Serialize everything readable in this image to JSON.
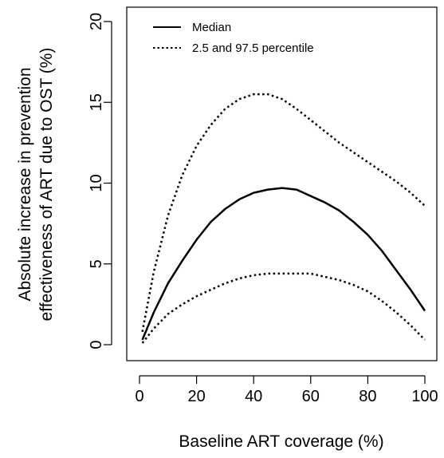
{
  "chart_data": {
    "type": "line",
    "title": "",
    "xlabel": "Baseline ART coverage (%)",
    "ylabel_lines": [
      "Absolute increase in prevention",
      "effectiveness of ART due to OST (%)"
    ],
    "xlim": [
      0,
      100
    ],
    "ylim": [
      0,
      20
    ],
    "xticks": [
      0,
      20,
      40,
      60,
      80,
      100
    ],
    "yticks": [
      0,
      5,
      10,
      15,
      20
    ],
    "grid": false,
    "legend_position": "top-left",
    "series": [
      {
        "name": "Median",
        "style": "solid",
        "color": "#000000",
        "x": [
          1,
          5,
          10,
          15,
          20,
          25,
          30,
          35,
          40,
          45,
          50,
          55,
          60,
          65,
          70,
          75,
          80,
          85,
          90,
          95,
          100
        ],
        "y": [
          0.3,
          2.0,
          3.8,
          5.2,
          6.5,
          7.6,
          8.4,
          9.0,
          9.4,
          9.6,
          9.7,
          9.6,
          9.2,
          8.8,
          8.3,
          7.6,
          6.8,
          5.8,
          4.6,
          3.4,
          2.1
        ]
      },
      {
        "name": "2.5 and 97.5 percentile",
        "style": "dotted",
        "color": "#000000",
        "x": [
          1,
          5,
          10,
          15,
          20,
          25,
          30,
          35,
          40,
          45,
          50,
          55,
          60,
          65,
          70,
          75,
          80,
          85,
          90,
          95,
          100
        ],
        "y": [
          0.8,
          4.5,
          8.0,
          10.5,
          12.3,
          13.6,
          14.6,
          15.2,
          15.5,
          15.5,
          15.2,
          14.6,
          13.9,
          13.2,
          12.5,
          11.9,
          11.3,
          10.7,
          10.1,
          9.4,
          8.6
        ]
      },
      {
        "name": "",
        "style": "dotted",
        "color": "#000000",
        "x": [
          1,
          5,
          10,
          15,
          20,
          25,
          30,
          35,
          40,
          45,
          50,
          55,
          60,
          65,
          70,
          75,
          80,
          85,
          90,
          95,
          100
        ],
        "y": [
          0.1,
          1.0,
          1.9,
          2.5,
          3.0,
          3.4,
          3.8,
          4.1,
          4.3,
          4.4,
          4.4,
          4.4,
          4.4,
          4.2,
          4.0,
          3.7,
          3.3,
          2.7,
          2.0,
          1.2,
          0.3
        ]
      }
    ]
  }
}
